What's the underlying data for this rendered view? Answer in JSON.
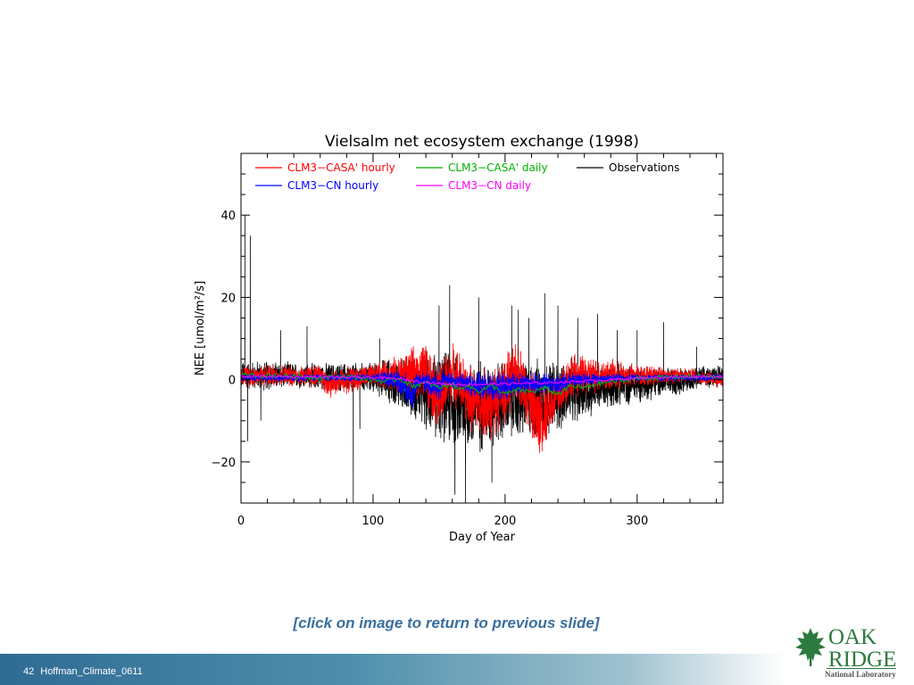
{
  "chart_data": {
    "type": "line",
    "title": "Vielsalm net ecosystem exchange (1998)",
    "xlabel": "Day of Year",
    "ylabel": "NEE [umol/m²/s]",
    "xlim": [
      0,
      365
    ],
    "ylim": [
      -30,
      55
    ],
    "x_ticks": [
      0,
      100,
      200,
      300
    ],
    "x_tick_labels": [
      "0",
      "100",
      "200",
      "300"
    ],
    "y_ticks": [
      -20,
      0,
      20,
      40
    ],
    "y_tick_labels": [
      "−20",
      "0",
      "20",
      "40"
    ],
    "grid": false,
    "legend_position": "top",
    "series": [
      {
        "name": "CLM3−CASA' hourly",
        "color": "#ff0000",
        "style": "noisy-hourly",
        "x": [
          0,
          60,
          65,
          100,
          120,
          140,
          150,
          160,
          175,
          190,
          210,
          225,
          250,
          300,
          340,
          360
        ],
        "y": [
          1,
          1,
          -1,
          1,
          1.5,
          2,
          -5,
          2,
          -5,
          -6,
          2,
          -10,
          1,
          1,
          1,
          0
        ],
        "spread": [
          3,
          3,
          4,
          3,
          5,
          8,
          10,
          8,
          9,
          10,
          8,
          10,
          6,
          3,
          2,
          2
        ]
      },
      {
        "name": "CLM3−CN hourly",
        "color": "#0000ff",
        "style": "noisy-hourly",
        "x": [
          0,
          100,
          118,
          125,
          130,
          135,
          150,
          155,
          170,
          190,
          220,
          245,
          250,
          300,
          360
        ],
        "y": [
          0.5,
          0.5,
          0,
          -2,
          -3,
          0,
          -2,
          0,
          -1,
          -2,
          -1,
          -1,
          0,
          0.5,
          0.5
        ],
        "spread": [
          1,
          1,
          3,
          4,
          5,
          2,
          5,
          2,
          3,
          4,
          3,
          3,
          2,
          1,
          1
        ]
      },
      {
        "name": "CLM3−CASA' daily",
        "color": "#00b000",
        "style": "smooth",
        "x": [
          0,
          30,
          60,
          80,
          100,
          110,
          120,
          130,
          140,
          150,
          160,
          165,
          170,
          180,
          190,
          200,
          210,
          220,
          230,
          240,
          250,
          260,
          270,
          280,
          300,
          320,
          340,
          360
        ],
        "y": [
          1,
          1,
          0.5,
          0.8,
          0,
          -0.5,
          0.3,
          -1.5,
          -0.8,
          -2,
          -1,
          -2.5,
          -1.2,
          -2.8,
          -1.5,
          -3.5,
          -2.5,
          -3,
          -2,
          -3.5,
          -1.5,
          -2,
          -1,
          -0.5,
          0.3,
          0.5,
          0.8,
          0.6
        ],
        "wiggle": 0.6
      },
      {
        "name": "CLM3−CN daily",
        "color": "#ff00ff",
        "style": "smooth",
        "x": [
          0,
          50,
          100,
          120,
          130,
          150,
          170,
          200,
          230,
          250,
          280,
          300,
          340,
          360
        ],
        "y": [
          0.8,
          0.7,
          0.5,
          0.2,
          -0.3,
          -1,
          -1.2,
          -1,
          -0.8,
          -0.5,
          0,
          0.4,
          0.7,
          0.8
        ],
        "wiggle": 0.3
      },
      {
        "name": "Observations",
        "color": "#000000",
        "style": "noisy-hourly",
        "x": [
          0,
          20,
          40,
          60,
          80,
          100,
          110,
          120,
          130,
          140,
          150,
          160,
          170,
          180,
          190,
          200,
          210,
          220,
          230,
          240,
          250,
          260,
          270,
          280,
          300,
          320,
          340,
          350,
          360
        ],
        "y": [
          1,
          1,
          1,
          0.8,
          0.5,
          0.5,
          0,
          -1,
          -2,
          -3,
          -4,
          -5,
          -6,
          -6,
          -6,
          -5,
          -5,
          -5,
          -4,
          -4,
          -3,
          -2.5,
          -2,
          -1.5,
          -1,
          -0.5,
          0,
          0.5,
          1
        ],
        "spread": [
          4,
          4,
          3.5,
          3.5,
          4,
          4,
          6,
          7,
          8,
          11,
          12,
          13,
          13,
          13,
          12,
          11,
          11,
          11,
          10,
          10,
          9,
          8,
          7,
          6,
          5,
          4,
          3.5,
          3,
          3
        ],
        "spikes": [
          [
            3,
            40
          ],
          [
            5,
            -15
          ],
          [
            7,
            35
          ],
          [
            15,
            -10
          ],
          [
            30,
            12
          ],
          [
            50,
            13
          ],
          [
            85,
            -30
          ],
          [
            90,
            -12
          ],
          [
            105,
            10
          ],
          [
            150,
            18
          ],
          [
            158,
            23
          ],
          [
            162,
            -28
          ],
          [
            170,
            -30
          ],
          [
            180,
            20
          ],
          [
            190,
            -25
          ],
          [
            205,
            18
          ],
          [
            210,
            17
          ],
          [
            218,
            15
          ],
          [
            230,
            21
          ],
          [
            240,
            18
          ],
          [
            255,
            15
          ],
          [
            270,
            16
          ],
          [
            285,
            12
          ],
          [
            300,
            12
          ],
          [
            320,
            14
          ],
          [
            345,
            8
          ]
        ]
      }
    ]
  },
  "caption": "[click on image to return to previous slide]",
  "footer": {
    "slide_number": "42",
    "deck_name": "Hoffman_Climate_0611"
  },
  "logo": {
    "line1": "OAK",
    "line2": "RIDGE",
    "line3": "National Laboratory",
    "icon": "leaf-icon",
    "color": "#2c7a3d"
  }
}
